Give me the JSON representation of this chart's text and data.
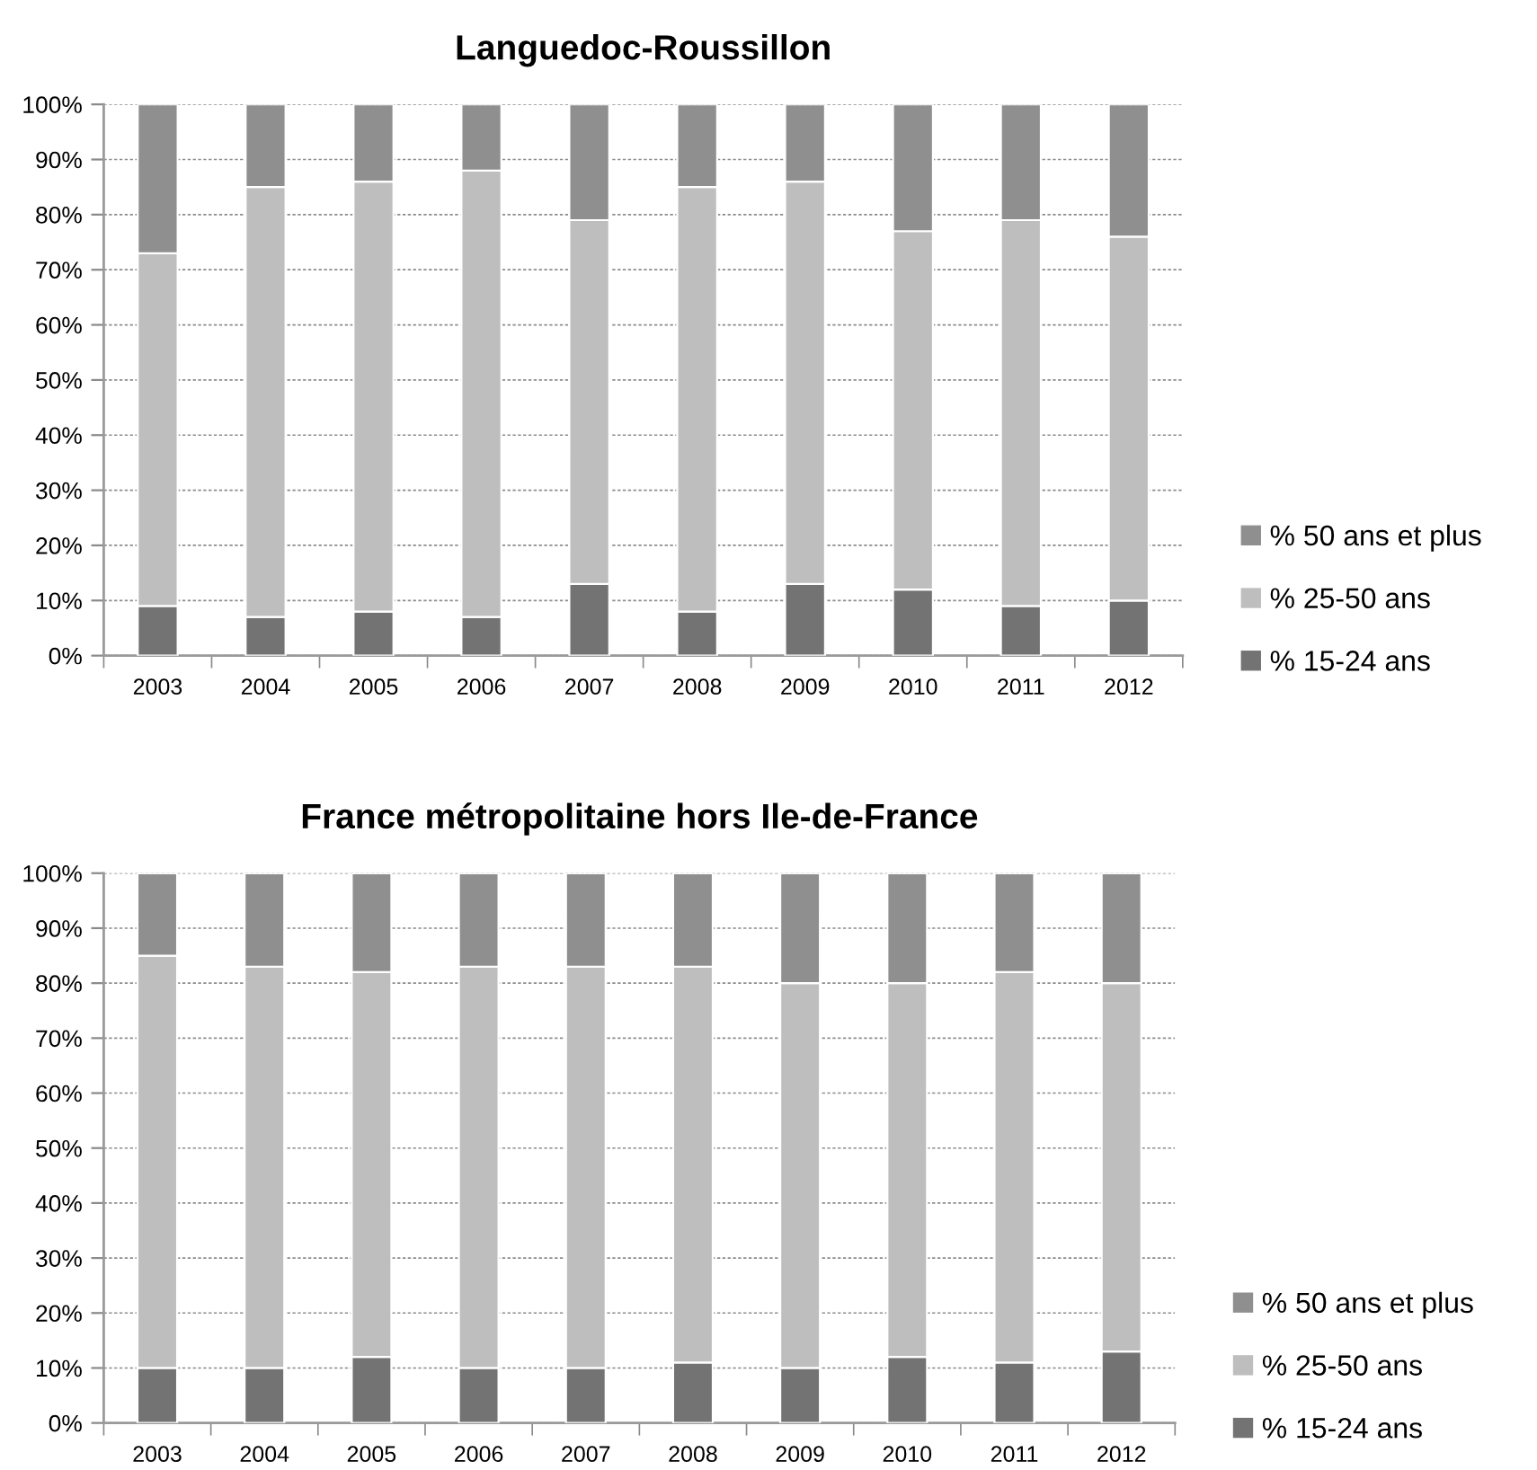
{
  "chart_data": [
    {
      "type": "bar",
      "title": "Languedoc-Roussillon",
      "categories": [
        "2003",
        "2004",
        "2005",
        "2006",
        "2007",
        "2008",
        "2009",
        "2010",
        "2011",
        "2012"
      ],
      "stacked": true,
      "series": [
        {
          "name": "% 15-24 ans",
          "color": "#737373",
          "values": [
            9,
            7,
            8,
            7,
            13,
            8,
            13,
            12,
            9,
            10
          ]
        },
        {
          "name": "% 25-50 ans",
          "color": "#bebebe",
          "values": [
            64,
            78,
            78,
            81,
            66,
            77,
            73,
            65,
            70,
            66
          ]
        },
        {
          "name": "% 50 ans et plus",
          "color": "#8f8f8f",
          "values": [
            27,
            15,
            14,
            12,
            21,
            15,
            14,
            23,
            21,
            24
          ]
        }
      ],
      "ylim": [
        0,
        100
      ],
      "yticks": [
        {
          "value": 0,
          "label": "0%"
        },
        {
          "value": 10,
          "label": "10%"
        },
        {
          "value": 20,
          "label": "20%"
        },
        {
          "value": 30,
          "label": "30%"
        },
        {
          "value": 40,
          "label": "40%"
        },
        {
          "value": 50,
          "label": "50%"
        },
        {
          "value": 60,
          "label": "60%"
        },
        {
          "value": 70,
          "label": "70%"
        },
        {
          "value": 80,
          "label": "80%"
        },
        {
          "value": 90,
          "label": "90%"
        },
        {
          "value": 100,
          "label": "100%"
        }
      ],
      "grid": "y",
      "legend": "right"
    },
    {
      "type": "bar",
      "title": "France métropolitaine hors Ile-de-France",
      "categories": [
        "2003",
        "2004",
        "2005",
        "2006",
        "2007",
        "2008",
        "2009",
        "2010",
        "2011",
        "2012"
      ],
      "stacked": true,
      "series": [
        {
          "name": "% 15-24 ans",
          "color": "#737373",
          "values": [
            10,
            10,
            12,
            10,
            10,
            11,
            10,
            12,
            11,
            13
          ]
        },
        {
          "name": "% 25-50 ans",
          "color": "#bebebe",
          "values": [
            75,
            73,
            70,
            73,
            73,
            72,
            70,
            68,
            71,
            67
          ]
        },
        {
          "name": "% 50 ans et plus",
          "color": "#8f8f8f",
          "values": [
            15,
            17,
            18,
            17,
            17,
            17,
            20,
            20,
            18,
            20
          ]
        }
      ],
      "ylim": [
        0,
        100
      ],
      "yticks": [
        {
          "value": 0,
          "label": "0%"
        },
        {
          "value": 10,
          "label": "10%"
        },
        {
          "value": 20,
          "label": "20%"
        },
        {
          "value": 30,
          "label": "30%"
        },
        {
          "value": 40,
          "label": "40%"
        },
        {
          "value": 50,
          "label": "50%"
        },
        {
          "value": 60,
          "label": "60%"
        },
        {
          "value": 70,
          "label": "70%"
        },
        {
          "value": 80,
          "label": "80%"
        },
        {
          "value": 90,
          "label": "90%"
        },
        {
          "value": 100,
          "label": "100%"
        }
      ],
      "grid": "y",
      "legend": "right"
    }
  ]
}
